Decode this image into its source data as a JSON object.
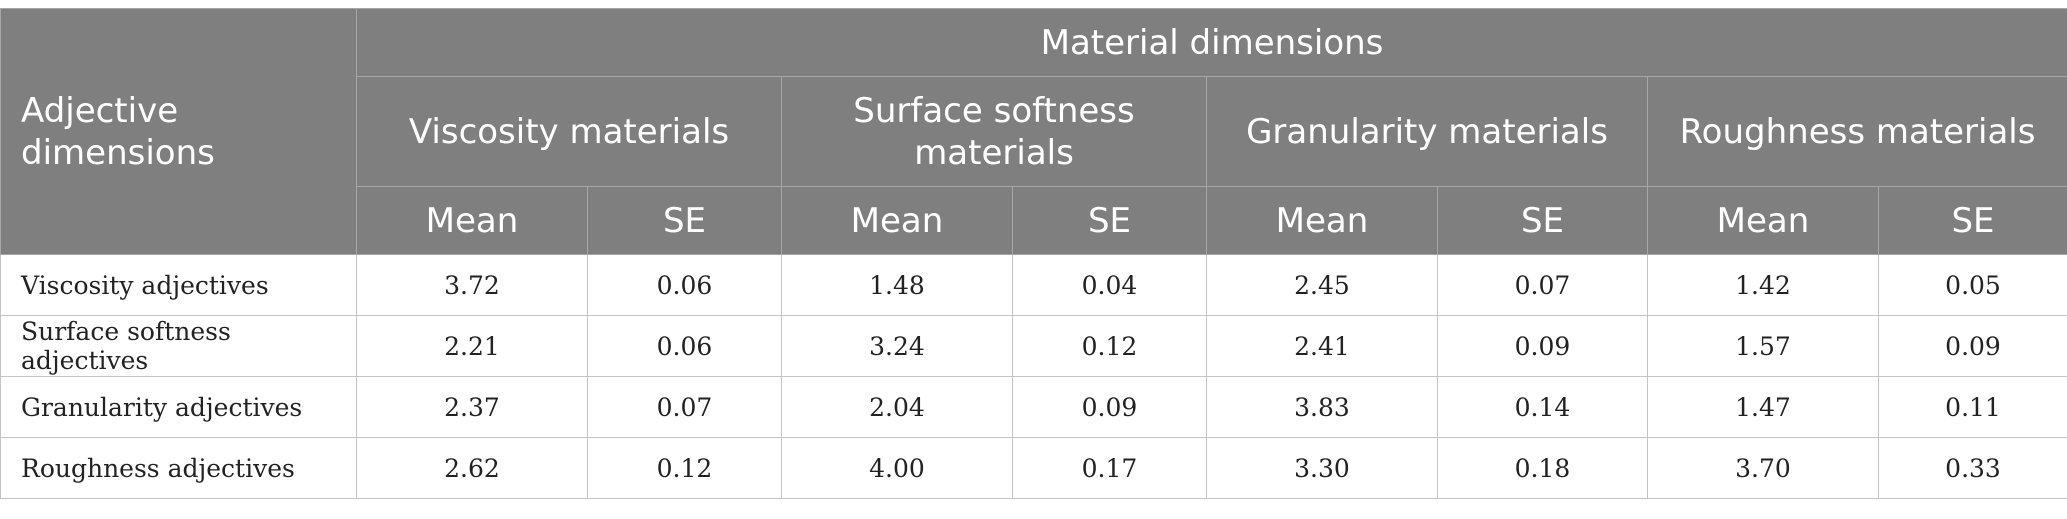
{
  "table": {
    "stub_header": "Adjective dimensions",
    "group_header": "Material dimensions",
    "material_columns": [
      "Viscosity materials",
      "Surface softness materials",
      "Granularity materials",
      "Roughness materials"
    ],
    "stat_labels": [
      "Mean",
      "SE"
    ],
    "rows": [
      {
        "label": "Viscosity adjectives",
        "values": [
          "3.72",
          "0.06",
          "1.48",
          "0.04",
          "2.45",
          "0.07",
          "1.42",
          "0.05"
        ]
      },
      {
        "label": "Surface softness adjectives",
        "values": [
          "2.21",
          "0.06",
          "3.24",
          "0.12",
          "2.41",
          "0.09",
          "1.57",
          "0.09"
        ]
      },
      {
        "label": "Granularity adjectives",
        "values": [
          "2.37",
          "0.07",
          "2.04",
          "0.09",
          "3.83",
          "0.14",
          "1.47",
          "0.11"
        ]
      },
      {
        "label": "Roughness adjectives",
        "values": [
          "2.62",
          "0.12",
          "4.00",
          "0.17",
          "3.30",
          "0.18",
          "3.70",
          "0.33"
        ]
      }
    ]
  },
  "colors": {
    "header_background": "#7f7f7f",
    "header_text": "#ffffff",
    "grid_lines": "#c4c4c4",
    "body_text": "#222222"
  }
}
